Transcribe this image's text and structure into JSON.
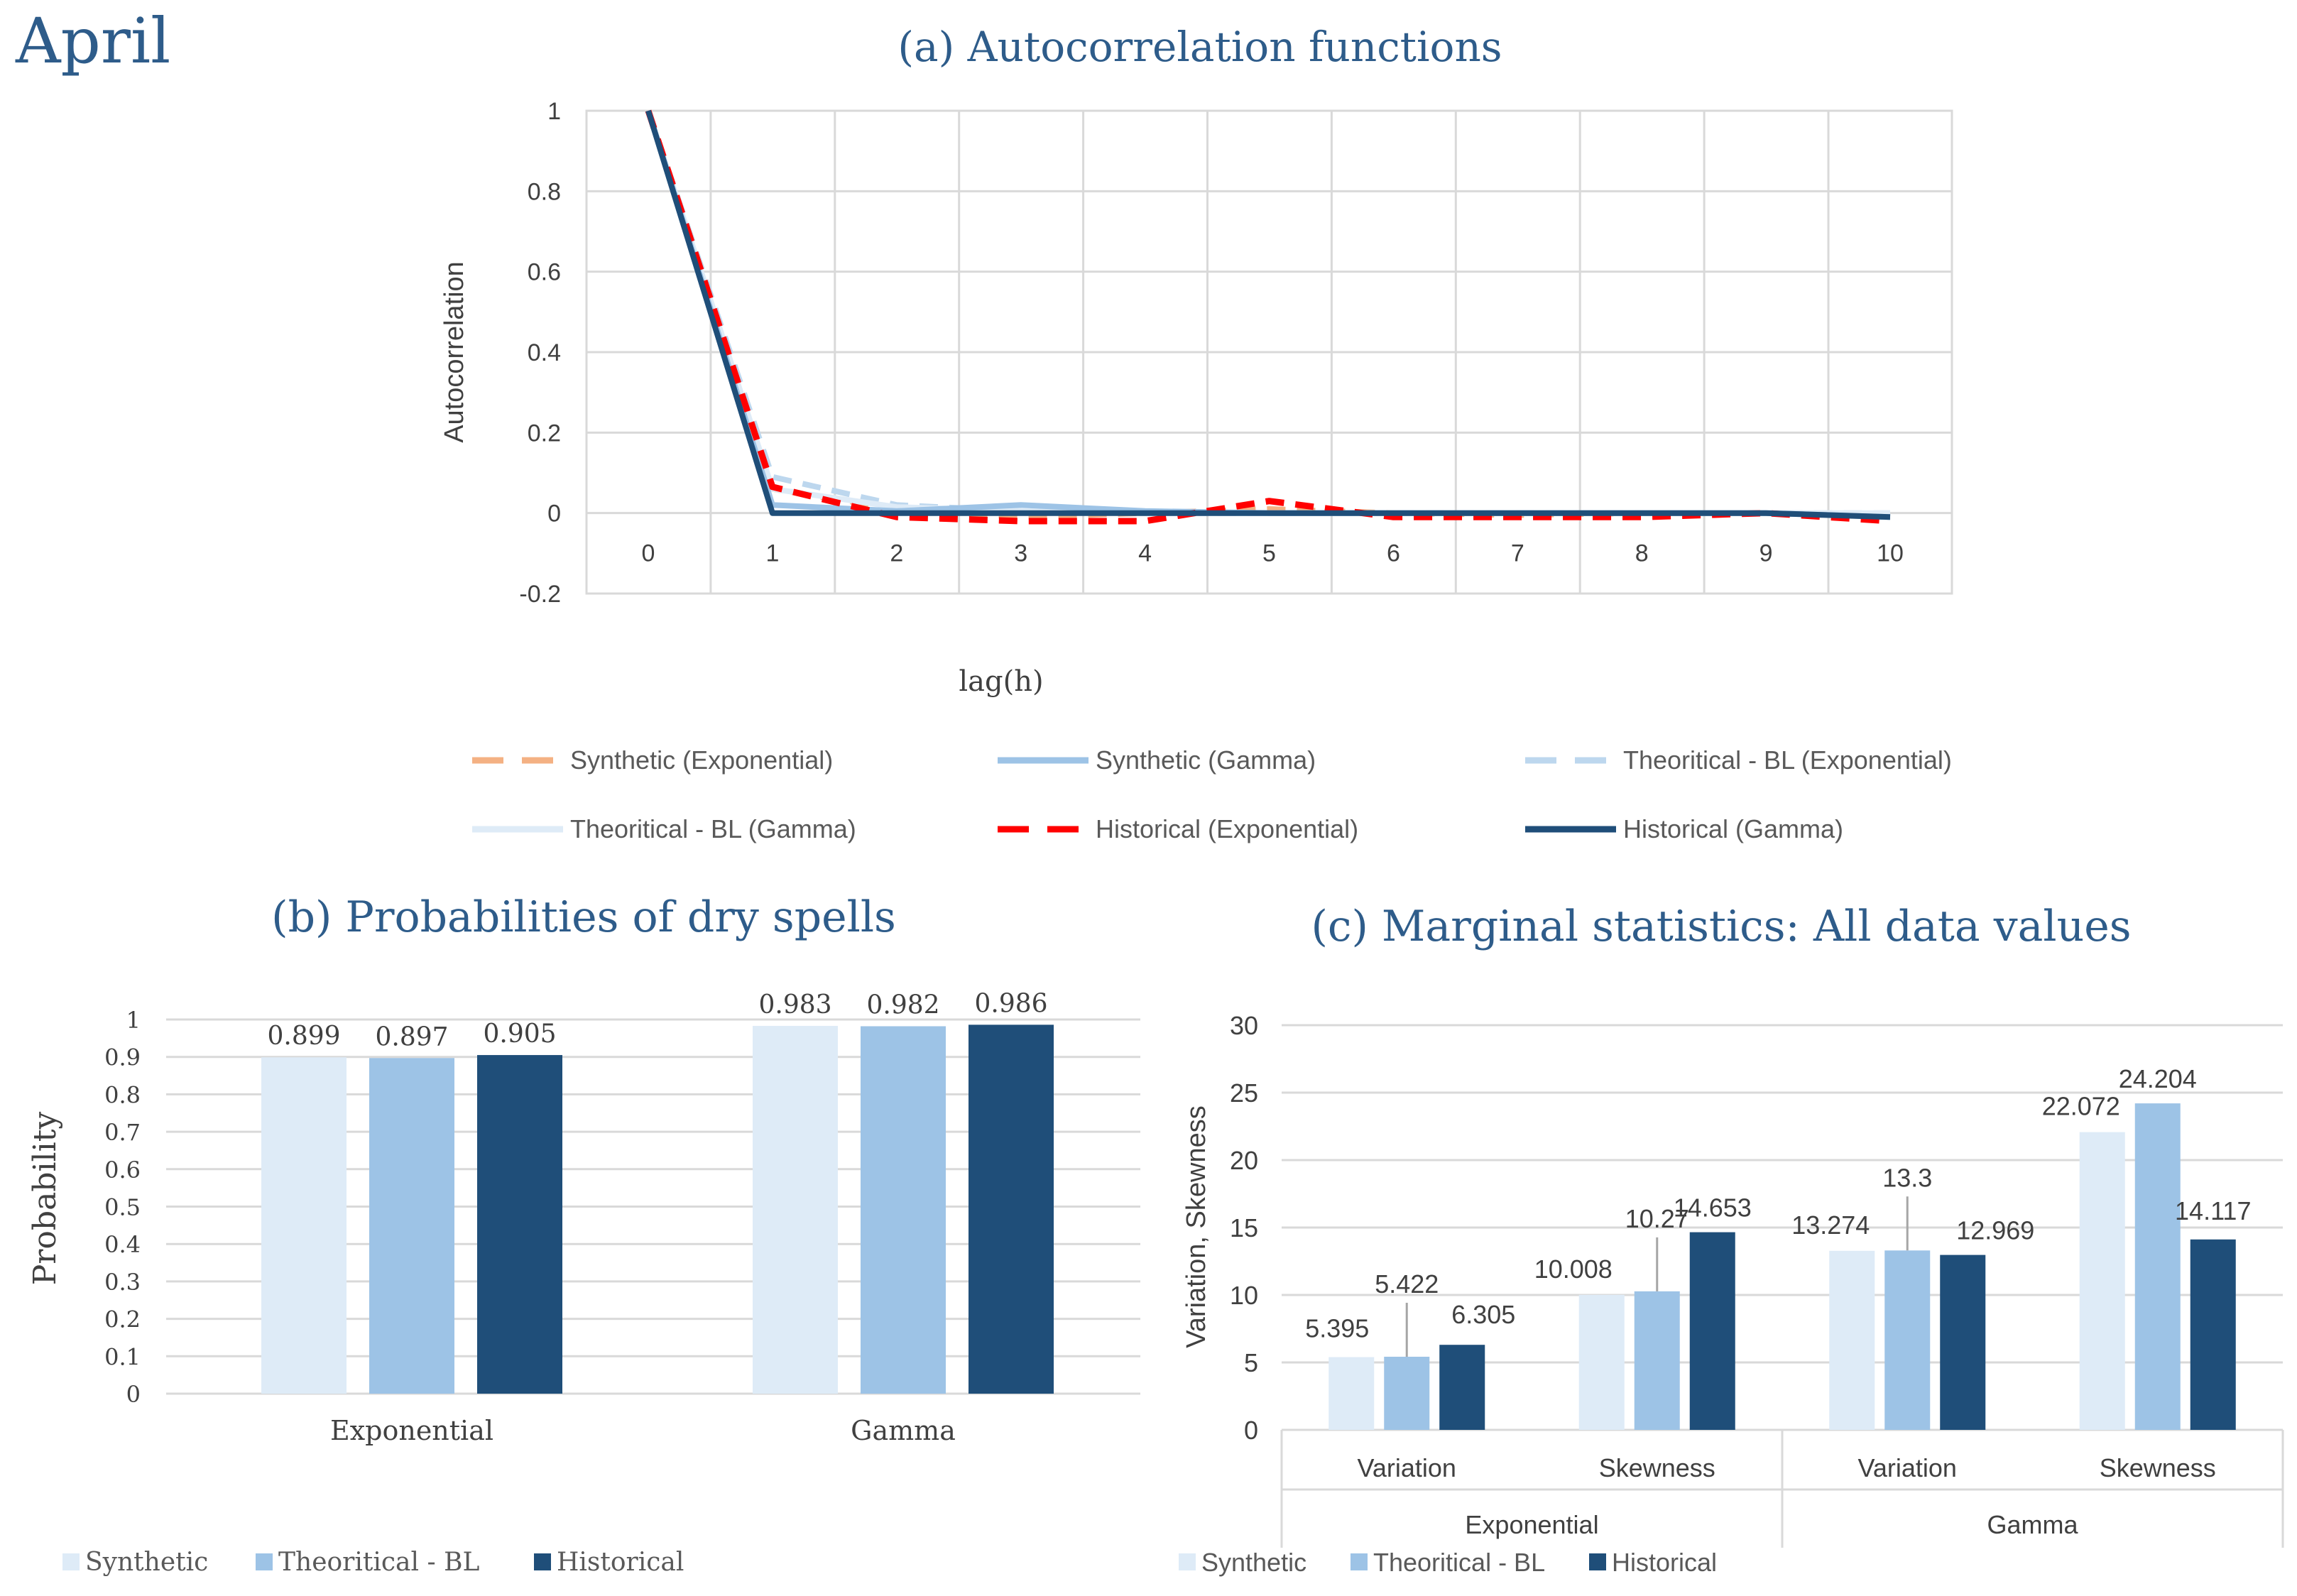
{
  "page_title": "April",
  "chart_data": [
    {
      "id": "acf",
      "type": "line",
      "title": "(a) Autocorrelation functions",
      "xlabel": "lag(h)",
      "ylabel": "Autocorrelation",
      "x": [
        0,
        1,
        2,
        3,
        4,
        5,
        6,
        7,
        8,
        9,
        10
      ],
      "ylim": [
        -0.2,
        1
      ],
      "yticks": [
        -0.2,
        0,
        0.2,
        0.4,
        0.6,
        0.8,
        1
      ],
      "ytick_labels": [
        "-0.2",
        "0",
        "0.2",
        "0.4",
        "0.6",
        "0.8",
        "1"
      ],
      "xtick_labels": [
        "0",
        "1",
        "2",
        "3",
        "4",
        "5",
        "6",
        "7",
        "8",
        "9",
        "10"
      ],
      "series": [
        {
          "name": "Synthetic (Exponential)",
          "color": "#F4B183",
          "dash": "dash",
          "values": [
            1,
            0.06,
            0.01,
            -0.01,
            0,
            0.01,
            0,
            -0.005,
            0,
            0,
            -0.01
          ]
        },
        {
          "name": "Synthetic (Gamma)",
          "color": "#9DC3E6",
          "dash": "solid",
          "values": [
            1,
            0.02,
            0.005,
            0.02,
            0.005,
            0,
            0,
            0,
            0,
            0,
            -0.01
          ]
        },
        {
          "name": "Theoritical - BL (Exponential)",
          "color": "#BDD7EE",
          "dash": "dash",
          "values": [
            1,
            0.09,
            0.02,
            0.005,
            0,
            0,
            0,
            0,
            0,
            0,
            0
          ]
        },
        {
          "name": "Theoritical - BL (Gamma)",
          "color": "#DEEBF7",
          "dash": "solid",
          "values": [
            1,
            0.06,
            0.015,
            0.005,
            0,
            0,
            0,
            0,
            0,
            0,
            0
          ]
        },
        {
          "name": "Historical (Exponential)",
          "color": "#FF0000",
          "dash": "dash",
          "values": [
            1,
            0.065,
            -0.01,
            -0.02,
            -0.02,
            0.03,
            -0.01,
            -0.01,
            -0.01,
            0,
            -0.02
          ]
        },
        {
          "name": "Historical (Gamma)",
          "color": "#1F4E79",
          "dash": "solid",
          "values": [
            1,
            0,
            0,
            0,
            0,
            0,
            0,
            0,
            0,
            0,
            -0.01
          ]
        }
      ],
      "grid": true,
      "legend": "bottom"
    },
    {
      "id": "dry",
      "type": "bar",
      "title": "(b) Probabilities of dry spells",
      "ylabel": "Probability",
      "categories": [
        "Exponential",
        "Gamma"
      ],
      "ylim": [
        0,
        1
      ],
      "yticks": [
        0,
        0.1,
        0.2,
        0.3,
        0.4,
        0.5,
        0.6,
        0.7,
        0.8,
        0.9,
        1
      ],
      "ytick_labels": [
        "0",
        "0.1",
        "0.2",
        "0.3",
        "0.4",
        "0.5",
        "0.6",
        "0.7",
        "0.8",
        "0.9",
        "1"
      ],
      "series": [
        {
          "name": "Synthetic",
          "color": "#DEEBF7",
          "values": [
            0.899,
            0.983
          ],
          "labels": [
            "0.899",
            "0.983"
          ]
        },
        {
          "name": "Theoritical - BL",
          "color": "#9DC3E6",
          "values": [
            0.897,
            0.982
          ],
          "labels": [
            "0.897",
            "0.982"
          ]
        },
        {
          "name": "Historical",
          "color": "#1F4E79",
          "values": [
            0.905,
            0.986
          ],
          "labels": [
            "0.905",
            "0.986"
          ]
        }
      ],
      "grid": true,
      "legend": "bottom-left"
    },
    {
      "id": "marg",
      "type": "bar",
      "title": "(c) Marginal statistics: All data values",
      "ylabel": "Variation, Skewness",
      "categories": [
        "Variation",
        "Skewness",
        "Variation",
        "Skewness"
      ],
      "groups": [
        "Exponential",
        "Gamma"
      ],
      "ylim": [
        0,
        30
      ],
      "yticks": [
        0,
        5,
        10,
        15,
        20,
        25,
        30
      ],
      "ytick_labels": [
        "0",
        "5",
        "10",
        "15",
        "20",
        "25",
        "30"
      ],
      "series": [
        {
          "name": "Synthetic",
          "color": "#DEEBF7",
          "values": [
            5.395,
            10.008,
            13.274,
            22.072
          ],
          "labels": [
            "5.395",
            "10.008",
            "13.274",
            "22.072"
          ]
        },
        {
          "name": "Theoritical - BL",
          "color": "#9DC3E6",
          "values": [
            5.422,
            10.27,
            13.3,
            24.204
          ],
          "labels": [
            "5.422",
            "10.27",
            "13.3",
            "24.204"
          ]
        },
        {
          "name": "Historical",
          "color": "#1F4E79",
          "values": [
            6.305,
            14.653,
            12.969,
            14.117
          ],
          "labels": [
            "6.305",
            "14.653",
            "12.969",
            "14.117"
          ]
        }
      ],
      "grid": true,
      "legend": "bottom-left"
    }
  ]
}
